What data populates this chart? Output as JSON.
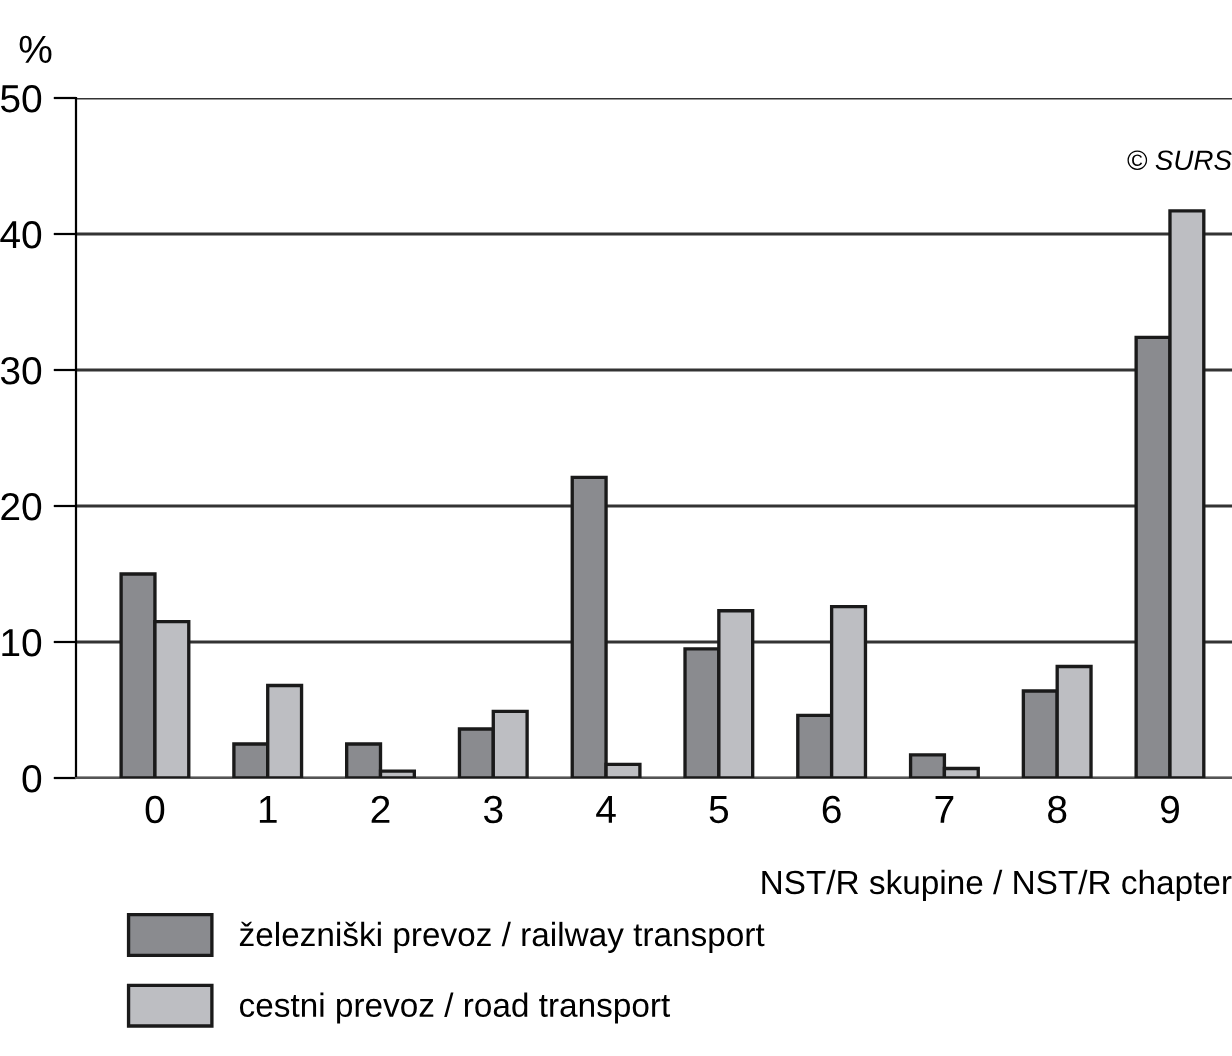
{
  "chart_data": {
    "type": "bar",
    "ylabel": "%",
    "xlabel": "NST/R skupine / NST/R chapter",
    "categories": [
      "0",
      "1",
      "2",
      "3",
      "4",
      "5",
      "6",
      "7",
      "8",
      "9"
    ],
    "series": [
      {
        "name": "železniški prevoz / railway transport",
        "color": "#8a8b8f",
        "values": [
          15.0,
          2.5,
          2.5,
          3.6,
          22.1,
          9.5,
          4.6,
          1.7,
          6.4,
          32.4
        ]
      },
      {
        "name": "cestni prevoz / road transport",
        "color": "#bdbec2",
        "values": [
          11.5,
          6.8,
          0.5,
          4.9,
          1.0,
          12.3,
          12.6,
          0.7,
          8.2,
          41.7
        ]
      }
    ],
    "ylim": [
      0,
      50
    ],
    "yticks": [
      0,
      10,
      20,
      30,
      40,
      50
    ],
    "grid": "y",
    "legend": "bottom left",
    "annotations": [
      "© SURS"
    ]
  }
}
